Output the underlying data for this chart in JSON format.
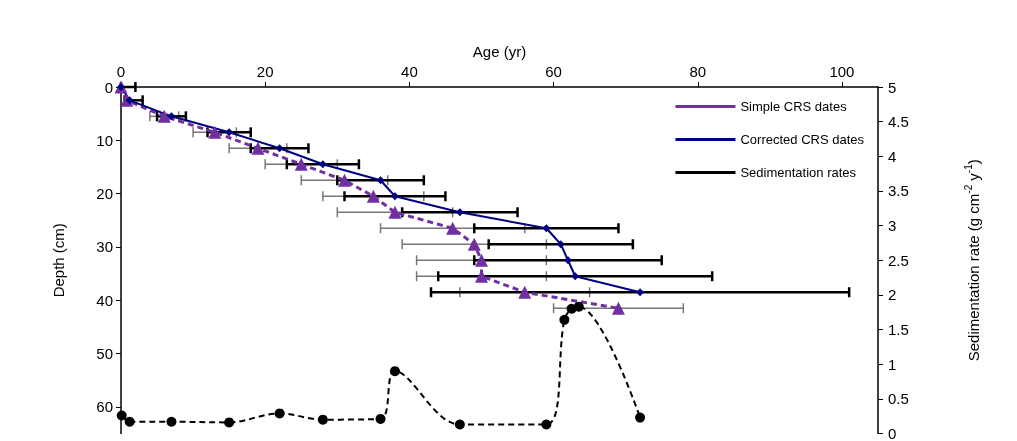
{
  "chart_data": {
    "type": "line",
    "xlabel": "Age (yr)",
    "ylabel": "Depth (cm)",
    "y2label": "Sedimentation rate (g cm$^{-2}$ y$^{-1}$)",
    "xlim": [
      0,
      105
    ],
    "xticks": [
      0,
      20,
      40,
      60,
      80,
      100
    ],
    "ylim": [
      65,
      0
    ],
    "yticks": [
      0,
      10,
      20,
      30,
      40,
      50,
      60
    ],
    "y2lim": [
      0,
      5
    ],
    "y2ticks": [
      0,
      0.5,
      1,
      1.5,
      2,
      2.5,
      3,
      3.5,
      4,
      4.5,
      5
    ],
    "legend": "top right",
    "grid": false,
    "series": [
      {
        "name": "Simple CRS dates",
        "color": "#7030a0",
        "marker": "triangle",
        "line_style": "dashed",
        "x": [
          0,
          0.8,
          6,
          13,
          19,
          25,
          31,
          35,
          38,
          46,
          49,
          50,
          50,
          56,
          69
        ],
        "values": [
          0,
          2.5,
          5.5,
          8.5,
          11.5,
          14.5,
          17.5,
          20.5,
          23.5,
          26.5,
          29.5,
          32.5,
          35.5,
          38.5,
          41.5
        ],
        "xerrors": [
          null,
          null,
          [
            4,
            8
          ],
          [
            10,
            16
          ],
          [
            15,
            23
          ],
          [
            20,
            30
          ],
          [
            25,
            37
          ],
          [
            28,
            42
          ],
          [
            30,
            46
          ],
          [
            36,
            56
          ],
          [
            39,
            59
          ],
          [
            41,
            59
          ],
          [
            41,
            59
          ],
          [
            47,
            65
          ],
          [
            60,
            78
          ]
        ]
      },
      {
        "name": "Corrected CRS dates",
        "color": "#000080",
        "marker": "diamond",
        "line_style": "solid",
        "x": [
          0,
          1.2,
          7,
          15,
          22,
          28,
          36,
          38,
          47,
          59,
          61,
          62,
          63,
          72
        ],
        "values": [
          0,
          2.5,
          5.5,
          8.5,
          11.5,
          14.5,
          17.5,
          20.5,
          23.5,
          26.5,
          29.5,
          32.5,
          35.5,
          38.5
        ],
        "xerrors": [
          [
            0,
            2
          ],
          [
            0.5,
            3
          ],
          [
            5,
            9
          ],
          [
            12,
            18
          ],
          [
            18,
            26
          ],
          [
            23,
            33
          ],
          [
            30,
            42
          ],
          [
            31,
            45
          ],
          [
            39,
            55
          ],
          [
            49,
            69
          ],
          [
            51,
            71
          ],
          [
            49,
            75
          ],
          [
            44,
            82
          ],
          [
            43,
            101
          ]
        ]
      },
      {
        "name": "Sedimentation rates",
        "color": "#000000",
        "marker": "circle",
        "line_style": "dashed",
        "axis": "y2",
        "x": [
          0.1,
          1.2,
          7,
          15,
          22,
          28,
          36,
          38,
          47,
          59,
          61.5,
          62.5,
          63.5,
          72
        ],
        "values": [
          0.26,
          0.17,
          0.17,
          0.16,
          0.29,
          0.2,
          0.21,
          0.9,
          0.13,
          0.13,
          1.64,
          1.8,
          1.83,
          0.23
        ]
      }
    ]
  }
}
